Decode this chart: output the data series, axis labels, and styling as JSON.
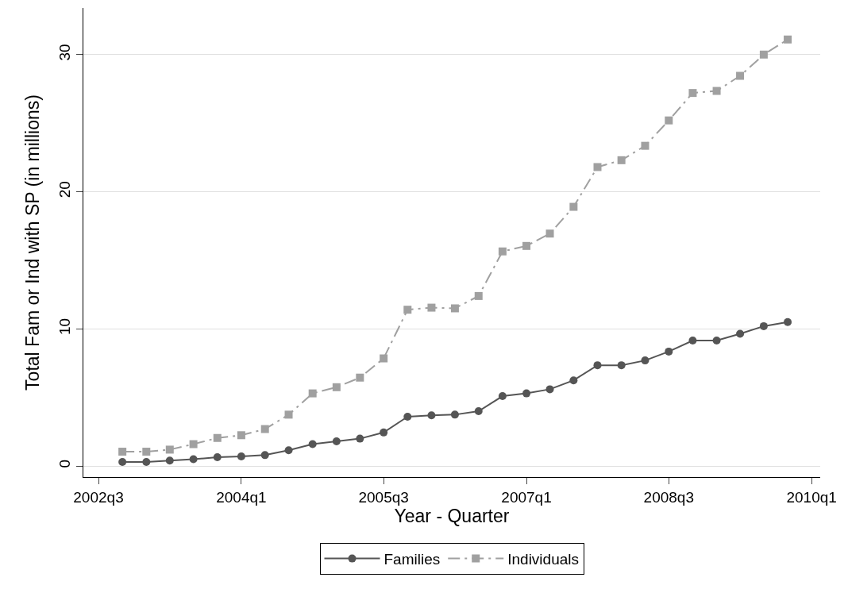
{
  "chart_data": {
    "type": "line",
    "xlabel": "Year - Quarter",
    "ylabel": "Total Fam or Ind with SP (in millions)",
    "x": [
      "2002-10",
      "2003-01",
      "2003-04",
      "2003-07",
      "2003-10",
      "2004-01",
      "2004-04",
      "2004-07",
      "2004-10",
      "2005-01",
      "2005-04",
      "2005-07",
      "2005-10",
      "2006-01",
      "2006-04",
      "2006-07",
      "2006-10",
      "2007-01",
      "2007-04",
      "2007-07",
      "2007-10",
      "2008-01",
      "2008-04",
      "2008-07",
      "2008-10",
      "2009-01",
      "2009-04",
      "2009-07",
      "2009-10"
    ],
    "series": [
      {
        "name": "Families",
        "color": "#555555",
        "marker": "circle",
        "line_style": "solid",
        "values": [
          0.3,
          0.3,
          0.4,
          0.5,
          0.65,
          0.7,
          0.8,
          1.15,
          1.6,
          1.8,
          2.0,
          2.45,
          3.6,
          3.7,
          3.75,
          4.0,
          5.1,
          5.3,
          5.6,
          6.25,
          7.35,
          7.35,
          7.7,
          8.35,
          9.15,
          9.15,
          9.65,
          10.2,
          10.5
        ]
      },
      {
        "name": "Individuals",
        "color": "#a0a0a0",
        "marker": "square",
        "line_style": "dashed",
        "values": [
          1.05,
          1.05,
          1.2,
          1.6,
          2.05,
          2.25,
          2.7,
          3.75,
          5.3,
          5.75,
          6.45,
          7.85,
          11.4,
          11.55,
          11.5,
          12.4,
          15.65,
          16.05,
          16.95,
          18.9,
          21.8,
          22.3,
          23.35,
          25.2,
          27.2,
          27.35,
          28.45,
          30.0,
          31.1
        ]
      }
    ],
    "xlim": [
      "2002-05-04",
      "2010-02-03"
    ],
    "xticks": [
      {
        "value": "2002-07",
        "label": "2002q3"
      },
      {
        "value": "2004-01",
        "label": "2004q1"
      },
      {
        "value": "2005-07",
        "label": "2005q3"
      },
      {
        "value": "2007-01",
        "label": "2007q1"
      },
      {
        "value": "2008-07",
        "label": "2008q3"
      },
      {
        "value": "2010-01",
        "label": "2010q1"
      }
    ],
    "ylim": [
      -0.8,
      33.4
    ],
    "yticks": [
      0,
      10,
      20,
      30
    ],
    "grid": "y",
    "legend": "bottom"
  }
}
